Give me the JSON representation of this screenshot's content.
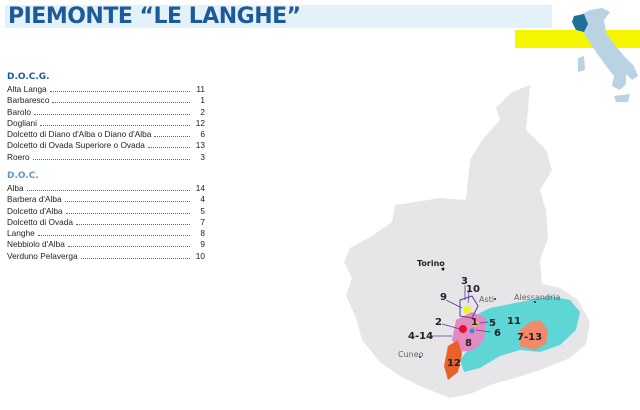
{
  "title": "PIEMONTE “LE LANGHE”",
  "colors": {
    "title": "#1d5a9a",
    "band": "#e3f1f8",
    "yellow": "#f5f500",
    "region": "#e6e6e8",
    "area_11": "#5fd6d6",
    "area_8": "#e58ac0",
    "area_12": "#e8602a",
    "area_7_13": "#f08a6a"
  },
  "docg": {
    "heading": "D.O.C.G.",
    "items": [
      {
        "name": "Alta Langa",
        "num": "11"
      },
      {
        "name": "Barbaresco",
        "num": "1"
      },
      {
        "name": "Barolo",
        "num": "2"
      },
      {
        "name": "Dogliani",
        "num": "12"
      },
      {
        "name": "Dolcetto di Diano d'Alba o Diano d'Alba",
        "num": "6"
      },
      {
        "name": "Dolcetto di Ovada Superiore o Ovada",
        "num": "13"
      },
      {
        "name": "Roero",
        "num": "3"
      }
    ]
  },
  "doc": {
    "heading": "D.O.C.",
    "items": [
      {
        "name": "Alba",
        "num": "14"
      },
      {
        "name": "Barbera d'Alba",
        "num": "4"
      },
      {
        "name": "Dolcetto d'Alba",
        "num": "5"
      },
      {
        "name": "Dolcetto di Ovada",
        "num": "7"
      },
      {
        "name": "Langhe",
        "num": "8"
      },
      {
        "name": "Nebbiolo d'Alba",
        "num": "9"
      },
      {
        "name": "Verduno Pelaverga",
        "num": "10"
      }
    ]
  },
  "map": {
    "cities": {
      "torino": "Torino",
      "asti": "Asti",
      "alessandria": "Alessandria",
      "cuneo": "Cuneo"
    },
    "labels": {
      "l3": "3",
      "l10": "10",
      "l9": "9",
      "l2": "2",
      "l1": "1",
      "l5": "5",
      "l6": "6",
      "l11": "11",
      "l4_14": "4-14",
      "l8": "8",
      "l7_13": "7-13",
      "l12": "12"
    }
  }
}
